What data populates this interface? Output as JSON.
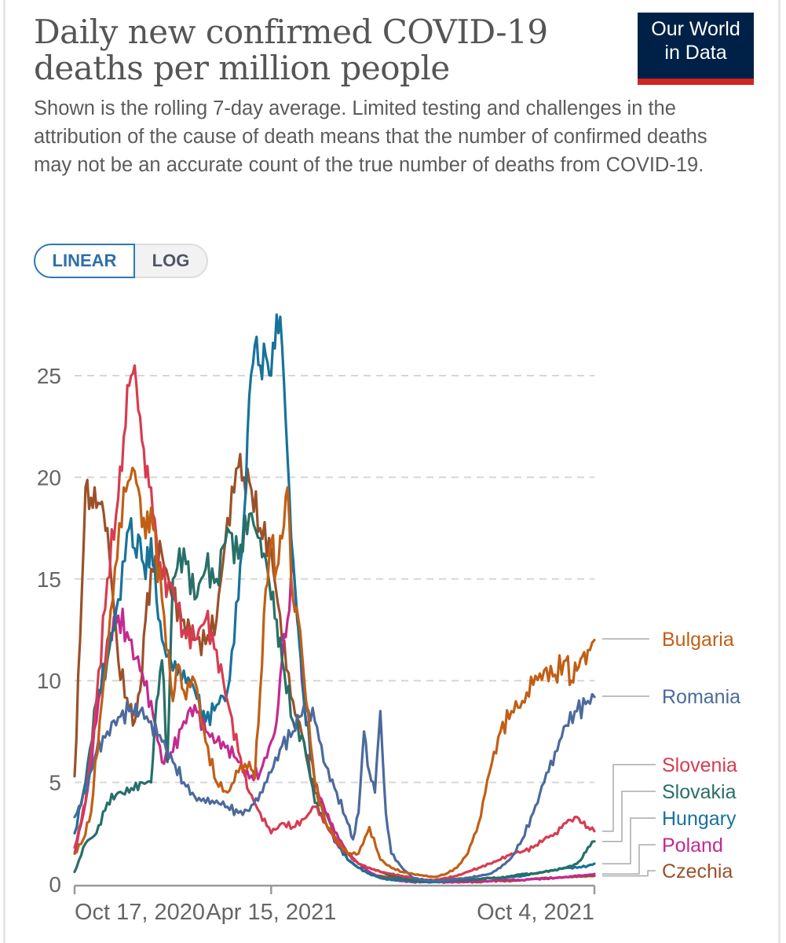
{
  "header": {
    "title_line1": "Daily new confirmed COVID-19",
    "title_line2": "deaths per million people",
    "subtitle": "Shown is the rolling 7-day average. Limited testing and challenges in the attribution of the cause of death means that the number of confirmed deaths may not be an accurate count of the true number of deaths from COVID-19.",
    "logo_line1": "Our World",
    "logo_line2": "in Data"
  },
  "scale_toggle": {
    "linear_label": "LINEAR",
    "log_label": "LOG",
    "selected": "LINEAR"
  },
  "chart_data": {
    "type": "line",
    "title": "Daily new confirmed COVID-19 deaths per million people",
    "xlabel": "",
    "ylabel": "",
    "x_unit": "days since Oct 17, 2020",
    "x_ticks": [
      {
        "x": 0,
        "label": "Oct 17, 2020"
      },
      {
        "x": 180,
        "label": "Apr 15, 2021"
      },
      {
        "x": 476,
        "label": "Oct 4, 2021"
      }
    ],
    "xlim": [
      0,
      476
    ],
    "ylim": [
      0,
      27
    ],
    "y_ticks": [
      0,
      5,
      10,
      15,
      20,
      25
    ],
    "grid": "horizontal-dashed",
    "legend_placement": "right-end-labels",
    "series": [
      {
        "name": "Bulgaria",
        "color": "#c15f16",
        "x": [
          0,
          8,
          15,
          25,
          35,
          45,
          55,
          60,
          65,
          70,
          80,
          90,
          95,
          100,
          110,
          120,
          130,
          140,
          150,
          160,
          165,
          170,
          175,
          180,
          185,
          190,
          195,
          200,
          205,
          210,
          220,
          230,
          240,
          250,
          260,
          270,
          280,
          290,
          300,
          310,
          320,
          330,
          340,
          350,
          360,
          370,
          380,
          390,
          400,
          410,
          420,
          430,
          440,
          450,
          455,
          460,
          465,
          470,
          476
        ],
        "y": [
          1.5,
          2.2,
          3.5,
          9,
          14,
          19.5,
          20.3,
          19,
          17,
          18.5,
          14,
          9,
          10.8,
          9.5,
          10,
          7,
          5,
          4.5,
          5.5,
          6,
          5.2,
          9.5,
          14.5,
          16.8,
          15.5,
          17,
          19.5,
          14,
          13,
          10.2,
          5,
          3,
          2.2,
          1.5,
          1.5,
          2.8,
          1.2,
          0.8,
          0.6,
          0.5,
          0.4,
          0.35,
          0.5,
          0.8,
          1.5,
          3,
          5.5,
          7.5,
          8.5,
          9,
          9.8,
          10.5,
          10.3,
          11,
          10,
          10.5,
          11.2,
          11.5,
          12
        ]
      },
      {
        "name": "Romania",
        "color": "#4c6a9c",
        "x": [
          0,
          10,
          20,
          30,
          40,
          50,
          60,
          70,
          80,
          90,
          100,
          110,
          120,
          130,
          140,
          150,
          160,
          170,
          180,
          190,
          200,
          210,
          220,
          230,
          240,
          250,
          255,
          260,
          265,
          270,
          275,
          280,
          285,
          290,
          300,
          310,
          320,
          330,
          340,
          350,
          360,
          370,
          380,
          390,
          400,
          410,
          420,
          430,
          440,
          450,
          460,
          470,
          476
        ],
        "y": [
          3.3,
          4.5,
          6.5,
          7.5,
          8.2,
          8.5,
          8.5,
          8,
          7,
          6,
          5,
          4.3,
          4,
          4.1,
          3.8,
          3.5,
          3.6,
          4.5,
          5.5,
          6.8,
          7.5,
          8.8,
          8,
          5.8,
          4.5,
          3,
          2.2,
          3.5,
          7.5,
          5.5,
          4.5,
          8.5,
          3.5,
          1.5,
          0.8,
          0.3,
          0.2,
          0.15,
          0.2,
          0.25,
          0.3,
          0.4,
          0.5,
          0.8,
          1.3,
          2.2,
          3.5,
          5,
          6.5,
          7.8,
          8.5,
          9,
          9.2
        ]
      },
      {
        "name": "Slovenia",
        "color": "#d73c50",
        "x": [
          0,
          10,
          20,
          30,
          40,
          45,
          50,
          55,
          60,
          65,
          70,
          75,
          80,
          90,
          100,
          110,
          120,
          130,
          140,
          150,
          160,
          170,
          180,
          190,
          200,
          210,
          220,
          230,
          240,
          250,
          260,
          270,
          280,
          290,
          300,
          310,
          320,
          330,
          340,
          350,
          360,
          370,
          380,
          390,
          400,
          410,
          420,
          430,
          440,
          450,
          460,
          465,
          470,
          476
        ],
        "y": [
          1.8,
          4,
          9,
          15,
          19,
          22,
          24.5,
          25.5,
          23,
          20,
          19.5,
          17,
          15,
          14.5,
          12.5,
          12,
          13,
          11.5,
          9,
          6.5,
          4.5,
          3.5,
          2.5,
          3,
          2.8,
          3.2,
          3.8,
          3,
          2,
          1.5,
          1,
          0.8,
          0.6,
          0.5,
          0.4,
          0.3,
          0.2,
          0.2,
          0.3,
          0.4,
          0.6,
          0.8,
          1,
          1.2,
          1.5,
          1.6,
          1.8,
          2.2,
          2.5,
          3,
          3.3,
          3,
          2.8,
          2.6
        ]
      },
      {
        "name": "Slovakia",
        "color": "#286f68",
        "x": [
          0,
          10,
          20,
          30,
          40,
          50,
          60,
          70,
          75,
          80,
          85,
          90,
          100,
          110,
          120,
          130,
          140,
          150,
          160,
          170,
          175,
          180,
          185,
          190,
          200,
          210,
          220,
          230,
          240,
          250,
          260,
          270,
          280,
          290,
          300,
          310,
          320,
          330,
          340,
          350,
          360,
          370,
          380,
          390,
          400,
          410,
          420,
          430,
          440,
          450,
          460,
          465,
          470,
          476
        ],
        "y": [
          0.6,
          2,
          2.5,
          4,
          4.5,
          4.5,
          5,
          5,
          9,
          11,
          6,
          15,
          16.5,
          14,
          15.5,
          15,
          17.5,
          16,
          18.2,
          17,
          16,
          14,
          13,
          11,
          8,
          7,
          4,
          3,
          2,
          1.5,
          1,
          0.8,
          0.6,
          0.4,
          0.3,
          0.2,
          0.15,
          0.15,
          0.2,
          0.2,
          0.2,
          0.25,
          0.3,
          0.3,
          0.4,
          0.5,
          0.5,
          0.6,
          0.7,
          0.8,
          1,
          1.3,
          1.8,
          2.1
        ]
      },
      {
        "name": "Hungary",
        "color": "#18739a",
        "x": [
          0,
          10,
          20,
          30,
          40,
          50,
          55,
          60,
          65,
          70,
          75,
          80,
          90,
          100,
          110,
          120,
          130,
          140,
          150,
          155,
          160,
          165,
          170,
          175,
          180,
          185,
          190,
          195,
          200,
          210,
          220,
          230,
          240,
          250,
          260,
          270,
          280,
          290,
          300,
          310,
          320,
          330,
          340,
          350,
          360,
          370,
          380,
          390,
          400,
          410,
          420,
          430,
          440,
          450,
          460,
          470,
          476
        ],
        "y": [
          2.5,
          5,
          9,
          11,
          14,
          17.5,
          16.5,
          17,
          15,
          17,
          14,
          12,
          10.5,
          10.5,
          9.5,
          8,
          8.8,
          9.5,
          14,
          18,
          24,
          26.5,
          25.5,
          26,
          25,
          28,
          26.5,
          21,
          16,
          9,
          5,
          3,
          2,
          1.2,
          0.8,
          0.5,
          0.3,
          0.2,
          0.2,
          0.15,
          0.1,
          0.1,
          0.15,
          0.2,
          0.2,
          0.25,
          0.3,
          0.3,
          0.35,
          0.4,
          0.5,
          0.6,
          0.7,
          0.8,
          0.8,
          0.9,
          1
        ]
      },
      {
        "name": "Poland",
        "color": "#c42a8f",
        "x": [
          0,
          10,
          20,
          30,
          40,
          50,
          60,
          70,
          80,
          90,
          100,
          110,
          120,
          130,
          140,
          150,
          160,
          170,
          180,
          185,
          190,
          195,
          200,
          210,
          220,
          230,
          240,
          250,
          260,
          270,
          280,
          290,
          300,
          310,
          320,
          330,
          340,
          350,
          360,
          370,
          380,
          390,
          400,
          410,
          420,
          430,
          440,
          450,
          460,
          470,
          476
        ],
        "y": [
          1.5,
          4,
          8,
          12,
          13.2,
          12,
          10.5,
          9,
          6,
          6.5,
          8,
          8.8,
          7.5,
          7,
          6.8,
          6,
          5.2,
          5.5,
          7,
          8,
          11,
          13,
          16,
          9,
          5,
          3.5,
          2.5,
          1.5,
          1,
          0.6,
          0.3,
          0.2,
          0.15,
          0.1,
          0.1,
          0.1,
          0.1,
          0.1,
          0.1,
          0.15,
          0.15,
          0.2,
          0.2,
          0.2,
          0.25,
          0.25,
          0.3,
          0.35,
          0.4,
          0.45,
          0.5
        ]
      },
      {
        "name": "Czechia",
        "color": "#9a5129",
        "x": [
          0,
          5,
          10,
          15,
          20,
          25,
          30,
          40,
          50,
          55,
          60,
          65,
          70,
          80,
          90,
          100,
          110,
          120,
          130,
          140,
          150,
          155,
          160,
          170,
          180,
          190,
          200,
          210,
          220,
          230,
          240,
          250,
          260,
          270,
          280,
          290,
          300,
          310,
          320,
          330,
          340,
          350,
          360,
          370,
          380,
          390,
          400,
          410,
          420,
          430,
          440,
          450,
          460,
          470,
          476
        ],
        "y": [
          5.3,
          12,
          19.5,
          19,
          18.5,
          18.8,
          17.5,
          11,
          8.5,
          8,
          9.5,
          13,
          15.5,
          16.2,
          14,
          13,
          12,
          11.8,
          13,
          18,
          20.5,
          20,
          19.8,
          17.5,
          16.5,
          12,
          9,
          7,
          4.5,
          3.5,
          2.2,
          1.2,
          0.8,
          0.5,
          0.4,
          0.3,
          0.2,
          0.15,
          0.1,
          0.1,
          0.1,
          0.1,
          0.1,
          0.1,
          0.15,
          0.15,
          0.15,
          0.2,
          0.25,
          0.3,
          0.3,
          0.35,
          0.35,
          0.4,
          0.4
        ]
      }
    ],
    "end_labels_order": [
      "Bulgaria",
      "Romania",
      "Slovenia",
      "Slovakia",
      "Hungary",
      "Poland",
      "Czechia"
    ]
  }
}
